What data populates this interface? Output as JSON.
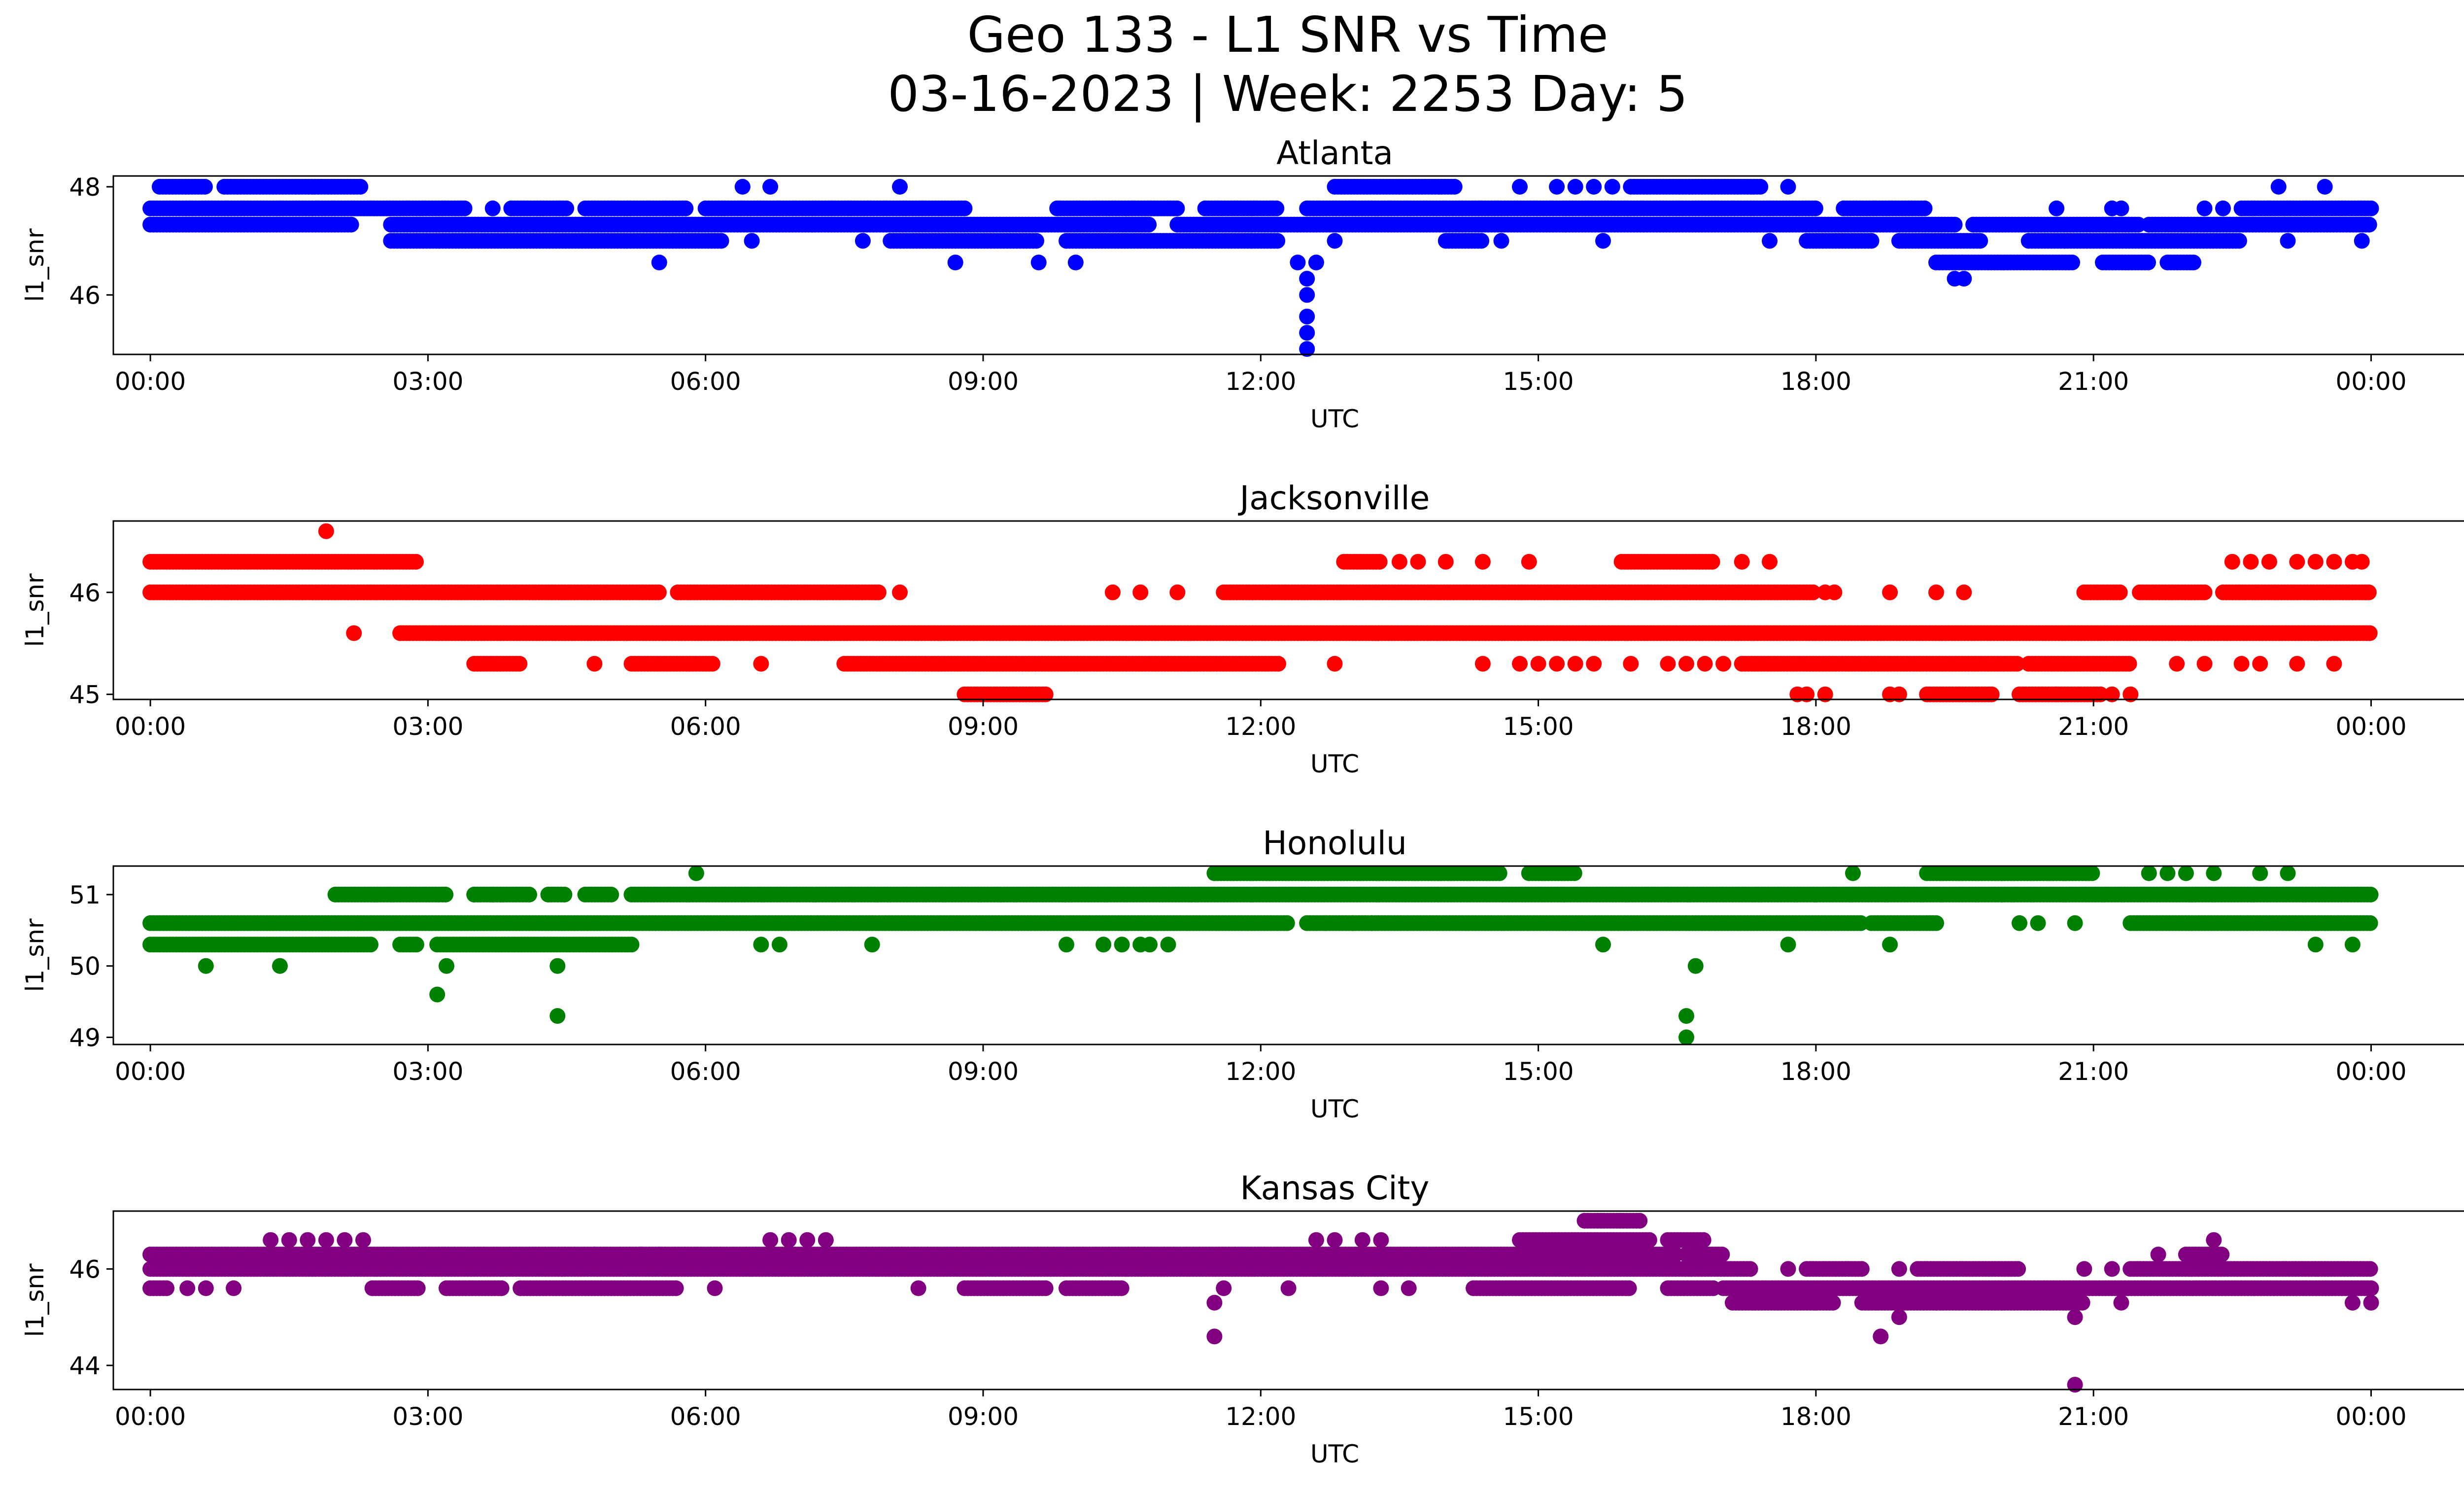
{
  "figure": {
    "title_line1": "Geo 133 - L1 SNR vs Time",
    "title_line2": "03-16-2023 | Week: 2253 Day: 5"
  },
  "chart_data": [
    {
      "type": "scatter",
      "title": "Atlanta",
      "xlabel": "UTC",
      "ylabel": "l1_snr",
      "color": "#0000ff",
      "x_unit": "hours UTC",
      "xlim": [
        -0.4,
        26
      ],
      "ylim": [
        44.9,
        48.2
      ],
      "x_ticks": [
        0,
        3,
        6,
        9,
        12,
        15,
        18,
        21,
        24
      ],
      "x_tick_labels": [
        "00:00",
        "03:00",
        "06:00",
        "09:00",
        "12:00",
        "15:00",
        "18:00",
        "21:00",
        "00:00"
      ],
      "y_ticks": [
        46,
        48
      ],
      "y_tick_labels": [
        "46",
        "48"
      ],
      "levels": [
        {
          "y": 48.0,
          "ranges": [
            [
              0.1,
              0.6
            ],
            [
              0.8,
              2.3
            ],
            [
              12.8,
              14.1
            ],
            [
              16.0,
              17.4
            ]
          ],
          "points": [
            6.4,
            6.7,
            8.1,
            14.8,
            15.2,
            15.4,
            15.6,
            15.8,
            17.7,
            23.0,
            23.5
          ]
        },
        {
          "y": 47.6,
          "ranges": [
            [
              0.0,
              3.4
            ],
            [
              3.9,
              4.5
            ],
            [
              4.7,
              5.8
            ],
            [
              6.0,
              8.8
            ],
            [
              9.8,
              11.1
            ],
            [
              11.4,
              12.2
            ],
            [
              12.5,
              18.0
            ],
            [
              18.3,
              19.2
            ],
            [
              22.6,
              24.0
            ]
          ],
          "points": [
            3.7,
            20.6,
            21.2,
            21.3,
            22.2,
            22.4
          ]
        },
        {
          "y": 47.3,
          "ranges": [
            [
              0.0,
              2.2
            ],
            [
              2.6,
              10.8
            ],
            [
              11.1,
              19.5
            ],
            [
              19.7,
              21.5
            ],
            [
              21.6,
              24.0
            ]
          ]
        },
        {
          "y": 47.0,
          "ranges": [
            [
              2.6,
              6.2
            ],
            [
              8.0,
              9.6
            ],
            [
              9.9,
              11.9
            ],
            [
              11.9,
              12.2
            ],
            [
              14.0,
              14.4
            ],
            [
              17.9,
              18.6
            ],
            [
              18.9,
              19.8
            ],
            [
              20.3,
              22.6
            ]
          ],
          "points": [
            6.5,
            7.7,
            12.8,
            14.6,
            15.7,
            17.5,
            23.1,
            23.9
          ]
        },
        {
          "y": 46.6,
          "ranges": [
            [
              19.3,
              20.8
            ],
            [
              21.1,
              21.6
            ],
            [
              21.8,
              22.1
            ]
          ],
          "points": [
            5.5,
            8.7,
            9.6,
            10.0,
            12.4,
            12.6
          ]
        },
        {
          "y": 46.3,
          "points": [
            12.5,
            19.5,
            19.6
          ]
        }
      ],
      "points": [
        [
          12.5,
          46.0
        ],
        [
          12.5,
          45.6
        ],
        [
          12.5,
          45.3
        ],
        [
          12.5,
          45.0
        ]
      ]
    },
    {
      "type": "scatter",
      "title": "Jacksonville",
      "xlabel": "UTC",
      "ylabel": "l1_snr",
      "color": "#ff0000",
      "x_unit": "hours UTC",
      "xlim": [
        -0.4,
        26
      ],
      "ylim": [
        44.95,
        46.7
      ],
      "x_ticks": [
        0,
        3,
        6,
        9,
        12,
        15,
        18,
        21,
        24
      ],
      "x_tick_labels": [
        "00:00",
        "03:00",
        "06:00",
        "09:00",
        "12:00",
        "15:00",
        "18:00",
        "21:00",
        "00:00"
      ],
      "y_ticks": [
        45,
        46
      ],
      "y_tick_labels": [
        "45",
        "46"
      ],
      "levels": [
        {
          "y": 46.3,
          "ranges": [
            [
              0.0,
              2.9
            ],
            [
              12.9,
              13.3
            ],
            [
              15.9,
              16.9
            ]
          ],
          "points": [
            13.5,
            13.7,
            14.0,
            14.4,
            14.9,
            17.2,
            17.5,
            22.5,
            22.7,
            22.9,
            23.2,
            23.4,
            23.6,
            23.8,
            23.9
          ]
        },
        {
          "y": 46.0,
          "ranges": [
            [
              0.0,
              5.5
            ],
            [
              5.7,
              7.9
            ],
            [
              11.6,
              18.0
            ],
            [
              20.9,
              21.3
            ],
            [
              21.5,
              22.2
            ],
            [
              22.4,
              24.0
            ]
          ],
          "points": [
            8.1,
            10.4,
            10.7,
            11.1,
            18.1,
            18.2,
            18.8,
            19.3,
            19.6
          ]
        },
        {
          "y": 45.6,
          "ranges": [
            [
              2.7,
              8.9
            ],
            [
              8.9,
              24.0
            ]
          ],
          "points": [
            2.2
          ]
        },
        {
          "y": 45.3,
          "ranges": [
            [
              3.5,
              4.0
            ],
            [
              5.2,
              6.1
            ],
            [
              7.5,
              12.2
            ],
            [
              17.2,
              20.2
            ],
            [
              20.3,
              21.4
            ]
          ],
          "points": [
            4.8,
            6.6,
            12.8,
            14.4,
            14.8,
            15.0,
            15.2,
            15.4,
            15.6,
            16.0,
            16.4,
            16.6,
            16.8,
            17.0,
            21.9,
            22.2,
            22.6,
            22.8,
            23.2,
            23.6
          ]
        },
        {
          "y": 45.0,
          "ranges": [
            [
              8.8,
              9.7
            ],
            [
              19.2,
              19.9
            ],
            [
              20.2,
              21.1
            ]
          ],
          "points": [
            17.8,
            17.9,
            18.1,
            18.8,
            18.9,
            20.6,
            21.2,
            21.4
          ]
        }
      ],
      "points": [
        [
          1.9,
          46.6
        ]
      ]
    },
    {
      "type": "scatter",
      "title": "Honolulu",
      "xlabel": "UTC",
      "ylabel": "l1_snr",
      "color": "#008000",
      "x_unit": "hours UTC",
      "xlim": [
        -0.4,
        26
      ],
      "ylim": [
        48.9,
        51.4
      ],
      "x_ticks": [
        0,
        3,
        6,
        9,
        12,
        15,
        18,
        21,
        24
      ],
      "x_tick_labels": [
        "00:00",
        "03:00",
        "06:00",
        "09:00",
        "12:00",
        "15:00",
        "18:00",
        "21:00",
        "00:00"
      ],
      "y_ticks": [
        49,
        50,
        51
      ],
      "y_tick_labels": [
        "49",
        "50",
        "51"
      ],
      "levels": [
        {
          "y": 51.3,
          "ranges": [
            [
              11.5,
              14.6
            ],
            [
              14.9,
              15.4
            ],
            [
              19.2,
              21.0
            ]
          ],
          "points": [
            5.9,
            18.4,
            21.6,
            21.8,
            22.0,
            22.3,
            22.8,
            23.1
          ]
        },
        {
          "y": 51.0,
          "ranges": [
            [
              2.0,
              3.2
            ],
            [
              3.5,
              4.1
            ],
            [
              4.3,
              4.5
            ],
            [
              4.7,
              5.0
            ],
            [
              5.2,
              24.0
            ]
          ],
          "points": [
            3.5,
            3.7
          ]
        },
        {
          "y": 50.6,
          "ranges": [
            [
              0.0,
              12.3
            ],
            [
              12.5,
              18.5
            ],
            [
              18.6,
              19.3
            ],
            [
              21.4,
              24.0
            ]
          ],
          "points": [
            12.7,
            13.0,
            13.2,
            20.2,
            20.4,
            20.8
          ]
        },
        {
          "y": 50.3,
          "ranges": [
            [
              0.0,
              2.4
            ],
            [
              2.7,
              2.9
            ],
            [
              3.1,
              5.2
            ]
          ],
          "points": [
            6.6,
            6.8,
            7.8,
            9.9,
            10.3,
            10.5,
            10.7,
            10.8,
            11.0,
            15.7,
            17.7,
            18.8,
            23.4,
            23.8
          ]
        },
        {
          "y": 50.0,
          "points": [
            0.6,
            1.4,
            3.2,
            4.4,
            16.7
          ]
        },
        {
          "y": 49.6,
          "points": [
            3.1
          ]
        },
        {
          "y": 49.3,
          "points": [
            4.4,
            16.6
          ]
        },
        {
          "y": 49.0,
          "points": [
            16.6
          ]
        }
      ],
      "points": []
    },
    {
      "type": "scatter",
      "title": "Kansas City",
      "xlabel": "UTC",
      "ylabel": "l1_snr",
      "color": "#800080",
      "x_unit": "hours UTC",
      "xlim": [
        -0.4,
        26
      ],
      "ylim": [
        43.5,
        47.2
      ],
      "x_ticks": [
        0,
        3,
        6,
        9,
        12,
        15,
        18,
        21,
        24
      ],
      "x_tick_labels": [
        "00:00",
        "03:00",
        "06:00",
        "09:00",
        "12:00",
        "15:00",
        "18:00",
        "21:00",
        "00:00"
      ],
      "y_ticks": [
        44,
        46
      ],
      "y_tick_labels": [
        "44",
        "46"
      ],
      "levels": [
        {
          "y": 47.0,
          "ranges": [
            [
              15.5,
              16.1
            ]
          ]
        },
        {
          "y": 46.6,
          "ranges": [
            [
              14.8,
              16.2
            ],
            [
              16.4,
              16.8
            ]
          ],
          "points": [
            1.3,
            1.5,
            1.7,
            1.9,
            2.1,
            2.3,
            6.7,
            6.9,
            7.1,
            7.3,
            12.6,
            12.8,
            13.1,
            13.3,
            22.3
          ]
        },
        {
          "y": 46.3,
          "ranges": [
            [
              0.0,
              16.5
            ],
            [
              16.6,
              17.0
            ],
            [
              22.0,
              22.4
            ]
          ],
          "points": [
            4.8,
            5.3,
            5.5,
            21.7
          ]
        },
        {
          "y": 46.0,
          "ranges": [
            [
              0.0,
              17.3
            ],
            [
              17.9,
              18.5
            ],
            [
              19.1,
              20.2
            ],
            [
              21.4,
              24.0
            ]
          ],
          "points": [
            17.7,
            18.9,
            20.9,
            21.2
          ]
        },
        {
          "y": 45.6,
          "ranges": [
            [
              0.0,
              0.2
            ],
            [
              2.4,
              2.9
            ],
            [
              3.2,
              3.8
            ],
            [
              4.0,
              5.7
            ],
            [
              8.8,
              9.7
            ],
            [
              9.9,
              10.5
            ],
            [
              14.3,
              16.0
            ],
            [
              16.4,
              16.9
            ],
            [
              17.0,
              24.0
            ]
          ],
          "points": [
            0.4,
            0.6,
            0.9,
            6.1,
            8.3,
            11.6,
            12.3,
            13.3,
            13.6
          ]
        },
        {
          "y": 45.3,
          "ranges": [
            [
              17.1,
              18.2
            ],
            [
              18.5,
              20.9
            ]
          ],
          "points": [
            11.5,
            19.3,
            21.3,
            23.8,
            24.0
          ]
        },
        {
          "y": 45.0,
          "points": [
            18.9,
            20.8
          ]
        },
        {
          "y": 44.6,
          "points": [
            11.5,
            18.7
          ]
        },
        {
          "y": 43.6,
          "points": [
            20.8
          ]
        }
      ],
      "points": []
    }
  ]
}
